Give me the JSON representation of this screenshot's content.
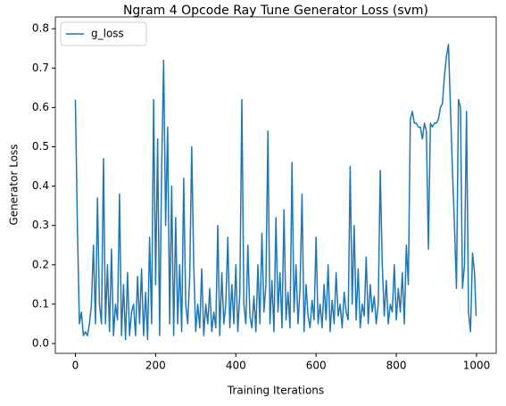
{
  "chart_data": {
    "type": "line",
    "title": "Ngram 4 Opcode Ray Tune Generator Loss (svm)",
    "x_label": "Training Iterations",
    "y_label": "Generator Loss",
    "legend": "upper left",
    "xlim": [
      -50,
      1049
    ],
    "ylim": [
      -0.025,
      0.83
    ],
    "xticks": [
      0,
      200,
      400,
      600,
      800,
      1000
    ],
    "yticks": [
      {
        "value": 0,
        "label": "0.0"
      },
      0.1,
      0.2,
      0.3,
      0.4,
      0.5,
      0.6,
      0.7,
      0.8
    ],
    "x": [
      0,
      5,
      10,
      15,
      20,
      25,
      30,
      35,
      40,
      45,
      50,
      55,
      60,
      65,
      70,
      75,
      80,
      85,
      90,
      95,
      100,
      105,
      110,
      115,
      120,
      125,
      130,
      135,
      140,
      145,
      150,
      155,
      160,
      165,
      170,
      175,
      180,
      185,
      190,
      195,
      200,
      205,
      210,
      215,
      220,
      225,
      230,
      235,
      240,
      245,
      250,
      255,
      260,
      265,
      270,
      275,
      280,
      285,
      290,
      295,
      300,
      305,
      310,
      315,
      320,
      325,
      330,
      335,
      340,
      345,
      350,
      355,
      360,
      365,
      370,
      375,
      380,
      385,
      390,
      395,
      400,
      405,
      410,
      415,
      420,
      425,
      430,
      435,
      440,
      445,
      450,
      455,
      460,
      465,
      470,
      475,
      480,
      485,
      490,
      495,
      500,
      505,
      510,
      515,
      520,
      525,
      530,
      535,
      540,
      545,
      550,
      555,
      560,
      565,
      570,
      575,
      580,
      585,
      590,
      595,
      600,
      605,
      610,
      615,
      620,
      625,
      630,
      635,
      640,
      645,
      650,
      655,
      660,
      665,
      670,
      675,
      680,
      685,
      690,
      695,
      700,
      705,
      710,
      715,
      720,
      725,
      730,
      735,
      740,
      745,
      750,
      755,
      760,
      765,
      770,
      775,
      780,
      785,
      790,
      795,
      800,
      805,
      810,
      815,
      820,
      825,
      830,
      835,
      840,
      845,
      850,
      855,
      860,
      865,
      870,
      875,
      880,
      885,
      890,
      895,
      900,
      905,
      910,
      915,
      920,
      925,
      930,
      935,
      940,
      945,
      950,
      955,
      960,
      965,
      970,
      975,
      980,
      985,
      990,
      995,
      999
    ],
    "series": [
      {
        "name": "g_loss",
        "color": "#1f77b4",
        "values": [
          0.62,
          0.3,
          0.05,
          0.08,
          0.02,
          0.03,
          0.02,
          0.05,
          0.1,
          0.25,
          0.05,
          0.37,
          0.1,
          0.05,
          0.47,
          0.05,
          0.2,
          0.03,
          0.24,
          0.02,
          0.1,
          0.06,
          0.38,
          0.02,
          0.15,
          0.01,
          0.18,
          0.02,
          0.08,
          0.1,
          0.02,
          0.17,
          0.05,
          0.19,
          0.02,
          0.13,
          0.01,
          0.27,
          0.05,
          0.62,
          0.15,
          0.52,
          0.02,
          0.44,
          0.72,
          0.3,
          0.55,
          0.05,
          0.4,
          0.02,
          0.32,
          0.05,
          0.2,
          0.03,
          0.42,
          0.1,
          0.05,
          0.17,
          0.5,
          0.2,
          0.03,
          0.1,
          0.04,
          0.19,
          0.02,
          0.1,
          0.05,
          0.14,
          0.03,
          0.08,
          0.04,
          0.3,
          0.02,
          0.18,
          0.05,
          0.1,
          0.27,
          0.04,
          0.15,
          0.05,
          0.2,
          0.03,
          0.13,
          0.62,
          0.1,
          0.05,
          0.25,
          0.07,
          0.04,
          0.12,
          0.03,
          0.2,
          0.05,
          0.28,
          0.08,
          0.15,
          0.54,
          0.05,
          0.16,
          0.03,
          0.32,
          0.08,
          0.18,
          0.04,
          0.34,
          0.06,
          0.13,
          0.04,
          0.46,
          0.08,
          0.2,
          0.05,
          0.14,
          0.38,
          0.03,
          0.15,
          0.07,
          0.04,
          0.11,
          0.06,
          0.27,
          0.05,
          0.1,
          0.04,
          0.15,
          0.06,
          0.2,
          0.03,
          0.11,
          0.05,
          0.18,
          0.07,
          0.1,
          0.04,
          0.13,
          0.08,
          0.06,
          0.45,
          0.1,
          0.3,
          0.06,
          0.19,
          0.04,
          0.1,
          0.07,
          0.22,
          0.05,
          0.15,
          0.08,
          0.12,
          0.05,
          0.1,
          0.44,
          0.2,
          0.07,
          0.16,
          0.05,
          0.1,
          0.08,
          0.2,
          0.06,
          0.14,
          0.08,
          0.18,
          0.05,
          0.25,
          0.15,
          0.57,
          0.59,
          0.56,
          0.56,
          0.55,
          0.55,
          0.52,
          0.56,
          0.54,
          0.24,
          0.56,
          0.55,
          0.56,
          0.56,
          0.57,
          0.6,
          0.61,
          0.68,
          0.73,
          0.76,
          0.6,
          0.44,
          0.3,
          0.14,
          0.62,
          0.6,
          0.14,
          0.2,
          0.59,
          0.08,
          0.03,
          0.23,
          0.18,
          0.07
        ]
      }
    ]
  }
}
